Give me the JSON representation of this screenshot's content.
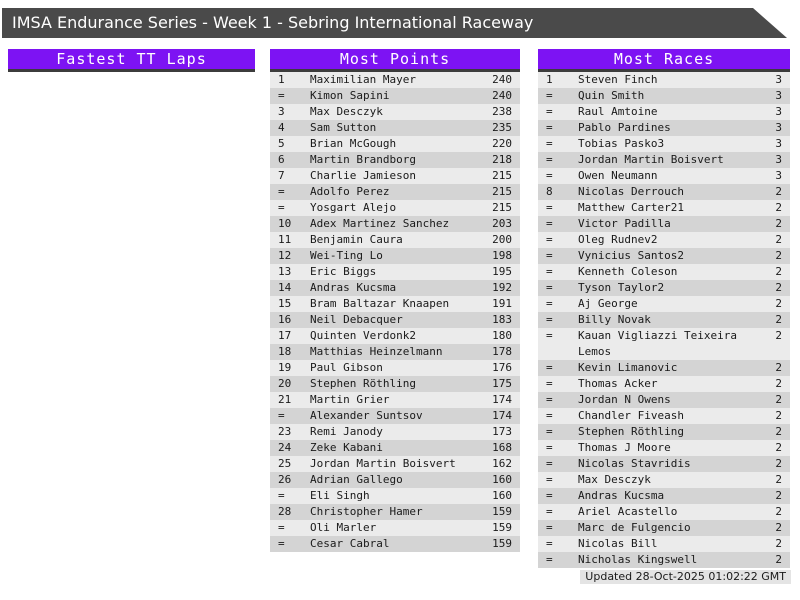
{
  "page": {
    "title": "IMSA Endurance Series - Week 1 - Sebring International Raceway",
    "updated": "Updated 28-Oct-2025 01:02:22 GMT"
  },
  "colors": {
    "accent_purple": "#7d13f3",
    "titlebar_gray": "#4a4a4a",
    "row_light": "#ebebeb",
    "row_dark": "#d4d4d4",
    "header_underline": "#3c3c3c"
  },
  "sections": [
    {
      "title": "Fastest TT Laps",
      "rows": []
    },
    {
      "title": "Most Points",
      "rows": [
        {
          "rank": "1",
          "name": "Maximilian Mayer",
          "value": "240"
        },
        {
          "rank": "=",
          "name": "Kimon Sapini",
          "value": "240"
        },
        {
          "rank": "3",
          "name": "Max Desczyk",
          "value": "238"
        },
        {
          "rank": "4",
          "name": "Sam Sutton",
          "value": "235"
        },
        {
          "rank": "5",
          "name": "Brian McGough",
          "value": "220"
        },
        {
          "rank": "6",
          "name": "Martin Brandborg",
          "value": "218"
        },
        {
          "rank": "7",
          "name": "Charlie Jamieson",
          "value": "215"
        },
        {
          "rank": "=",
          "name": "Adolfo Perez",
          "value": "215"
        },
        {
          "rank": "=",
          "name": "Yosgart Alejo",
          "value": "215"
        },
        {
          "rank": "10",
          "name": "Adex Martinez Sanchez",
          "value": "203"
        },
        {
          "rank": "11",
          "name": "Benjamin Caura",
          "value": "200"
        },
        {
          "rank": "12",
          "name": "Wei-Ting Lo",
          "value": "198"
        },
        {
          "rank": "13",
          "name": "Eric Biggs",
          "value": "195"
        },
        {
          "rank": "14",
          "name": "Andras Kucsma",
          "value": "192"
        },
        {
          "rank": "15",
          "name": "Bram Baltazar Knaapen",
          "value": "191"
        },
        {
          "rank": "16",
          "name": "Neil Debacquer",
          "value": "183"
        },
        {
          "rank": "17",
          "name": "Quinten Verdonk2",
          "value": "180"
        },
        {
          "rank": "18",
          "name": "Matthias Heinzelmann",
          "value": "178"
        },
        {
          "rank": "19",
          "name": "Paul Gibson",
          "value": "176"
        },
        {
          "rank": "20",
          "name": "Stephen Röthling",
          "value": "175"
        },
        {
          "rank": "21",
          "name": "Martin Grier",
          "value": "174"
        },
        {
          "rank": "=",
          "name": "Alexander Suntsov",
          "value": "174"
        },
        {
          "rank": "23",
          "name": "Remi Janody",
          "value": "173"
        },
        {
          "rank": "24",
          "name": "Zeke Kabani",
          "value": "168"
        },
        {
          "rank": "25",
          "name": "Jordan Martin Boisvert",
          "value": "162"
        },
        {
          "rank": "26",
          "name": "Adrian Gallego",
          "value": "160"
        },
        {
          "rank": "=",
          "name": "Eli Singh",
          "value": "160"
        },
        {
          "rank": "28",
          "name": "Christopher Hamer",
          "value": "159"
        },
        {
          "rank": "=",
          "name": "Oli Marler",
          "value": "159"
        },
        {
          "rank": "=",
          "name": "Cesar Cabral",
          "value": "159"
        }
      ]
    },
    {
      "title": "Most Races",
      "rows": [
        {
          "rank": "1",
          "name": "Steven Finch",
          "value": "3"
        },
        {
          "rank": "=",
          "name": "Quin Smith",
          "value": "3"
        },
        {
          "rank": "=",
          "name": "Raul Amtoine",
          "value": "3"
        },
        {
          "rank": "=",
          "name": "Pablo Pardines",
          "value": "3"
        },
        {
          "rank": "=",
          "name": "Tobias Pasko3",
          "value": "3"
        },
        {
          "rank": "=",
          "name": "Jordan Martin Boisvert",
          "value": "3"
        },
        {
          "rank": "=",
          "name": "Owen Neumann",
          "value": "3"
        },
        {
          "rank": "8",
          "name": "Nicolas Derrouch",
          "value": "2"
        },
        {
          "rank": "=",
          "name": "Matthew Carter21",
          "value": "2"
        },
        {
          "rank": "=",
          "name": "Victor Padilla",
          "value": "2"
        },
        {
          "rank": "=",
          "name": "Oleg Rudnev2",
          "value": "2"
        },
        {
          "rank": "=",
          "name": "Vynicius Santos2",
          "value": "2"
        },
        {
          "rank": "=",
          "name": "Kenneth Coleson",
          "value": "2"
        },
        {
          "rank": "=",
          "name": "Tyson Taylor2",
          "value": "2"
        },
        {
          "rank": "=",
          "name": "Aj George",
          "value": "2"
        },
        {
          "rank": "=",
          "name": "Billy Novak",
          "value": "2"
        },
        {
          "rank": "=",
          "name": "Kauan Vigliazzi Teixeira Lemos",
          "value": "2"
        },
        {
          "rank": "=",
          "name": "Kevin Limanovic",
          "value": "2"
        },
        {
          "rank": "=",
          "name": "Thomas Acker",
          "value": "2"
        },
        {
          "rank": "=",
          "name": "Jordan N Owens",
          "value": "2"
        },
        {
          "rank": "=",
          "name": "Chandler Fiveash",
          "value": "2"
        },
        {
          "rank": "=",
          "name": "Stephen Röthling",
          "value": "2"
        },
        {
          "rank": "=",
          "name": "Thomas J Moore",
          "value": "2"
        },
        {
          "rank": "=",
          "name": "Nicolas Stavridis",
          "value": "2"
        },
        {
          "rank": "=",
          "name": "Max Desczyk",
          "value": "2"
        },
        {
          "rank": "=",
          "name": "Andras Kucsma",
          "value": "2"
        },
        {
          "rank": "=",
          "name": "Ariel Acastello",
          "value": "2"
        },
        {
          "rank": "=",
          "name": "Marc de Fulgencio",
          "value": "2"
        },
        {
          "rank": "=",
          "name": "Nicolas Bill",
          "value": "2"
        },
        {
          "rank": "=",
          "name": "Nicholas Kingswell",
          "value": "2"
        }
      ]
    }
  ]
}
